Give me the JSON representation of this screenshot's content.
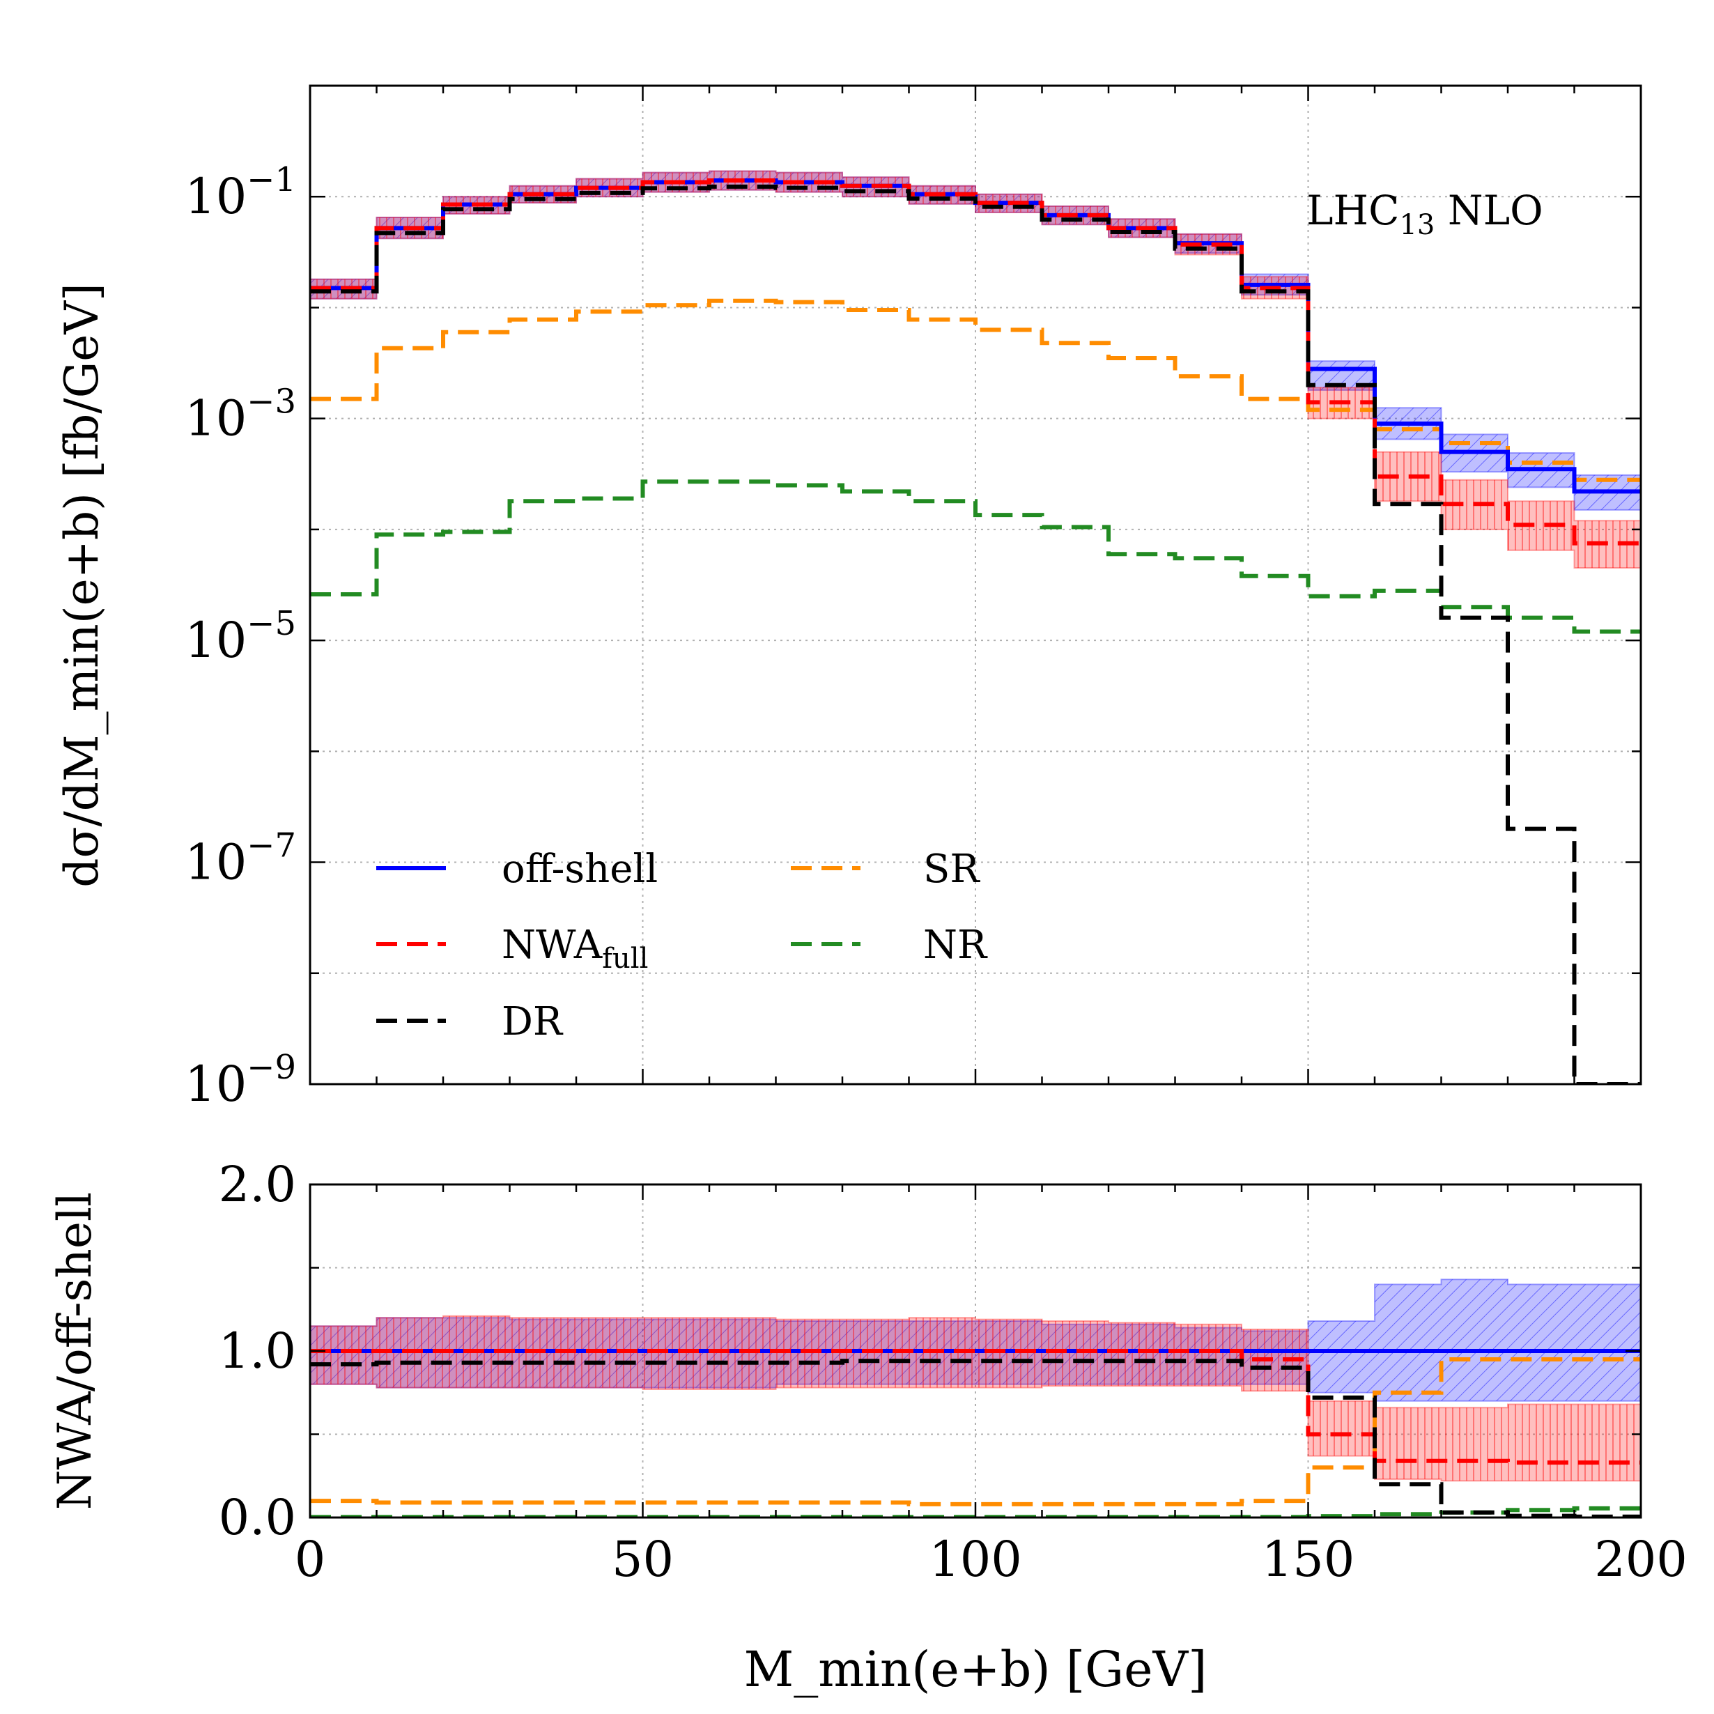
{
  "chart_data": [
    {
      "panel": "main",
      "type": "line",
      "yscale": "log",
      "xlabel": "M_min(e+b) [GeV]",
      "ylabel": "dσ/dM_min(e+b) [fb/GeV]",
      "xlim": [
        0,
        200
      ],
      "ylim": [
        1e-09,
        1
      ],
      "x_ticks": [
        "0",
        "50",
        "100",
        "150",
        "200"
      ],
      "y_ticks": [
        {
          "value": 0.1,
          "base": "10",
          "exp": "−1"
        },
        {
          "value": 0.001,
          "base": "10",
          "exp": "−3"
        },
        {
          "value": 1e-05,
          "base": "10",
          "exp": "−5"
        },
        {
          "value": 1e-07,
          "base": "10",
          "exp": "−7"
        },
        {
          "value": 1e-09,
          "base": "10",
          "exp": "−9"
        }
      ],
      "annotation": {
        "text": "LHC",
        "sub": "13",
        "suffix": " NLO"
      },
      "legend_position": "lower-left",
      "bin_edges": [
        0,
        10,
        20,
        30,
        40,
        50,
        60,
        70,
        80,
        90,
        100,
        110,
        120,
        130,
        140,
        150,
        160,
        170,
        180,
        190,
        200
      ],
      "series": [
        {
          "name": "off-shell",
          "color": "#0000ff",
          "style": "solid",
          "values": [
            0.015,
            0.052,
            0.085,
            0.105,
            0.12,
            0.135,
            0.14,
            0.135,
            0.125,
            0.105,
            0.088,
            0.068,
            0.052,
            0.038,
            0.016,
            0.0028,
            0.0009,
            0.0005,
            0.00035,
            0.00022
          ],
          "band_lo": [
            0.012,
            0.042,
            0.07,
            0.088,
            0.1,
            0.11,
            0.115,
            0.11,
            0.1,
            0.086,
            0.072,
            0.056,
            0.043,
            0.031,
            0.013,
            0.0018,
            0.00065,
            0.00033,
            0.00024,
            0.00015
          ],
          "band_hi": [
            0.018,
            0.065,
            0.1,
            0.125,
            0.145,
            0.165,
            0.17,
            0.165,
            0.15,
            0.125,
            0.105,
            0.082,
            0.063,
            0.046,
            0.02,
            0.0033,
            0.00125,
            0.00072,
            0.00049,
            0.00031
          ],
          "band_color": "#0000ff"
        },
        {
          "name": "NWA",
          "sub": "full",
          "color": "#ff0000",
          "style": "dashed",
          "values": [
            0.015,
            0.052,
            0.085,
            0.105,
            0.12,
            0.135,
            0.14,
            0.135,
            0.125,
            0.105,
            0.088,
            0.068,
            0.052,
            0.037,
            0.015,
            0.0014,
            0.0003,
            0.00017,
            0.00011,
            7.5e-05
          ],
          "band_lo": [
            0.012,
            0.042,
            0.07,
            0.088,
            0.1,
            0.11,
            0.115,
            0.11,
            0.1,
            0.086,
            0.072,
            0.056,
            0.043,
            0.03,
            0.012,
            0.001,
            0.00018,
            0.0001,
            6.5e-05,
            4.5e-05
          ],
          "band_hi": [
            0.018,
            0.065,
            0.1,
            0.125,
            0.145,
            0.165,
            0.17,
            0.165,
            0.15,
            0.125,
            0.105,
            0.082,
            0.063,
            0.046,
            0.019,
            0.0019,
            0.0005,
            0.00028,
            0.00018,
            0.00012
          ],
          "band_color": "#ff0000"
        },
        {
          "name": "DR",
          "color": "#000000",
          "style": "dashed",
          "values": [
            0.014,
            0.047,
            0.077,
            0.095,
            0.108,
            0.119,
            0.123,
            0.12,
            0.112,
            0.096,
            0.081,
            0.062,
            0.048,
            0.034,
            0.014,
            0.002,
            0.00017,
            1.6e-05,
            2e-07,
            1e-09
          ]
        },
        {
          "name": "SR",
          "color": "#ff8c00",
          "style": "dashed",
          "values": [
            0.0015,
            0.0043,
            0.006,
            0.0078,
            0.0092,
            0.0105,
            0.0115,
            0.0112,
            0.0095,
            0.0078,
            0.0063,
            0.0048,
            0.0035,
            0.0024,
            0.0015,
            0.0012,
            0.0008,
            0.0006,
            0.0004,
            0.00028
          ]
        },
        {
          "name": "NR",
          "color": "#228b22",
          "style": "dashed",
          "values": [
            2.6e-05,
            9e-05,
            9.5e-05,
            0.00018,
            0.00019,
            0.00027,
            0.00027,
            0.00025,
            0.00022,
            0.00018,
            0.000135,
            0.000105,
            6e-05,
            5.5e-05,
            3.8e-05,
            2.5e-05,
            2.8e-05,
            2e-05,
            1.6e-05,
            1.2e-05
          ]
        }
      ]
    },
    {
      "panel": "ratio",
      "type": "line",
      "ylabel": "NWA/off-shell",
      "xlim": [
        0,
        200
      ],
      "ylim": [
        0,
        2
      ],
      "y_ticks": [
        "0.0",
        "1.0",
        "2.0"
      ],
      "series": [
        {
          "name": "off-shell",
          "color": "#0000ff",
          "style": "solid",
          "values": [
            1,
            1,
            1,
            1,
            1,
            1,
            1,
            1,
            1,
            1,
            1,
            1,
            1,
            1,
            1,
            1,
            1,
            1,
            1,
            1
          ],
          "band_lo": [
            0.8,
            0.78,
            0.78,
            0.78,
            0.78,
            0.78,
            0.78,
            0.8,
            0.8,
            0.8,
            0.8,
            0.8,
            0.8,
            0.8,
            0.8,
            0.75,
            0.7,
            0.7,
            0.7,
            0.7
          ],
          "band_hi": [
            1.15,
            1.2,
            1.2,
            1.19,
            1.19,
            1.19,
            1.19,
            1.18,
            1.18,
            1.18,
            1.18,
            1.16,
            1.16,
            1.14,
            1.12,
            1.18,
            1.4,
            1.43,
            1.4,
            1.4
          ],
          "band_color": "#0000ff"
        },
        {
          "name": "NWA",
          "color": "#ff0000",
          "style": "dashed",
          "values": [
            1,
            1,
            1,
            1,
            1,
            1,
            1,
            1,
            1,
            1,
            1,
            1,
            1,
            1,
            0.95,
            0.5,
            0.34,
            0.34,
            0.33,
            0.33
          ],
          "band_lo": [
            0.8,
            0.78,
            0.78,
            0.78,
            0.78,
            0.77,
            0.77,
            0.78,
            0.78,
            0.78,
            0.78,
            0.79,
            0.79,
            0.79,
            0.76,
            0.37,
            0.23,
            0.22,
            0.22,
            0.22
          ],
          "band_hi": [
            1.15,
            1.2,
            1.21,
            1.2,
            1.2,
            1.2,
            1.2,
            1.19,
            1.19,
            1.2,
            1.19,
            1.18,
            1.17,
            1.16,
            1.13,
            0.7,
            0.66,
            0.66,
            0.68,
            0.68
          ],
          "band_color": "#ff0000"
        },
        {
          "name": "DR",
          "color": "#000000",
          "style": "dashed",
          "values": [
            0.92,
            0.93,
            0.93,
            0.93,
            0.93,
            0.93,
            0.93,
            0.93,
            0.94,
            0.94,
            0.94,
            0.94,
            0.94,
            0.94,
            0.9,
            0.72,
            0.2,
            0.03,
            0.01,
            0.005
          ]
        },
        {
          "name": "SR",
          "color": "#ff8c00",
          "style": "dashed",
          "values": [
            0.1,
            0.09,
            0.09,
            0.09,
            0.09,
            0.09,
            0.09,
            0.09,
            0.09,
            0.08,
            0.08,
            0.08,
            0.08,
            0.08,
            0.1,
            0.3,
            0.75,
            0.95,
            0.95,
            0.95
          ]
        },
        {
          "name": "NR",
          "color": "#228b22",
          "style": "dashed",
          "values": [
            0.003,
            0.003,
            0.003,
            0.003,
            0.003,
            0.003,
            0.003,
            0.003,
            0.003,
            0.003,
            0.003,
            0.003,
            0.003,
            0.003,
            0.003,
            0.008,
            0.02,
            0.03,
            0.045,
            0.055
          ]
        }
      ]
    }
  ],
  "legend": [
    {
      "label": "off-shell"
    },
    {
      "label": "NWA",
      "sub": "full"
    },
    {
      "label": "DR"
    },
    {
      "label": "SR"
    },
    {
      "label": "NR"
    }
  ]
}
